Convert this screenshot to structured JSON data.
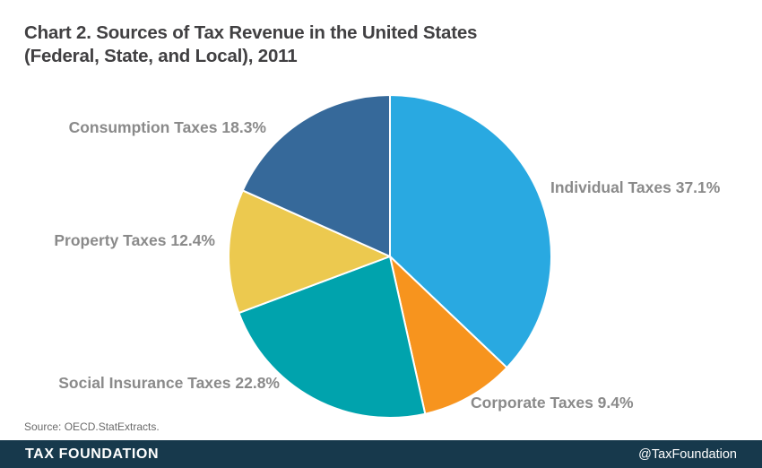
{
  "header": {
    "title_line1": "Chart 2. Sources of Tax Revenue in the United States",
    "title_line2": "(Federal, State, and Local), 2011"
  },
  "chart_data": {
    "type": "pie",
    "title": "Chart 2. Sources of Tax Revenue in the United States (Federal, State, and Local), 2011",
    "start_angle_deg": 0,
    "direction": "clockwise",
    "slices": [
      {
        "name": "Individual Taxes",
        "value": 37.1,
        "label": "Individual Taxes 37.1%",
        "color": "#29a9e1"
      },
      {
        "name": "Corporate Taxes",
        "value": 9.4,
        "label": "Corporate Taxes 9.4%",
        "color": "#f7941e"
      },
      {
        "name": "Social Insurance Taxes",
        "value": 22.8,
        "label": "Social Insurance Taxes 22.8%",
        "color": "#00a3ad"
      },
      {
        "name": "Property Taxes",
        "value": 12.4,
        "label": "Property Taxes 12.4%",
        "color": "#ecc94f"
      },
      {
        "name": "Consumption Taxes",
        "value": 18.3,
        "label": "Consumption Taxes 18.3%",
        "color": "#36699a"
      }
    ],
    "slice_border_color": "#ffffff",
    "label_color": "#8a8a8a",
    "legend_position": "around-slices"
  },
  "footnote": {
    "source": "Source: OECD.StatExtracts."
  },
  "footer": {
    "brand": "TAX FOUNDATION",
    "handle": "@TaxFoundation",
    "background": "#17394c",
    "text_color": "#ffffff"
  }
}
